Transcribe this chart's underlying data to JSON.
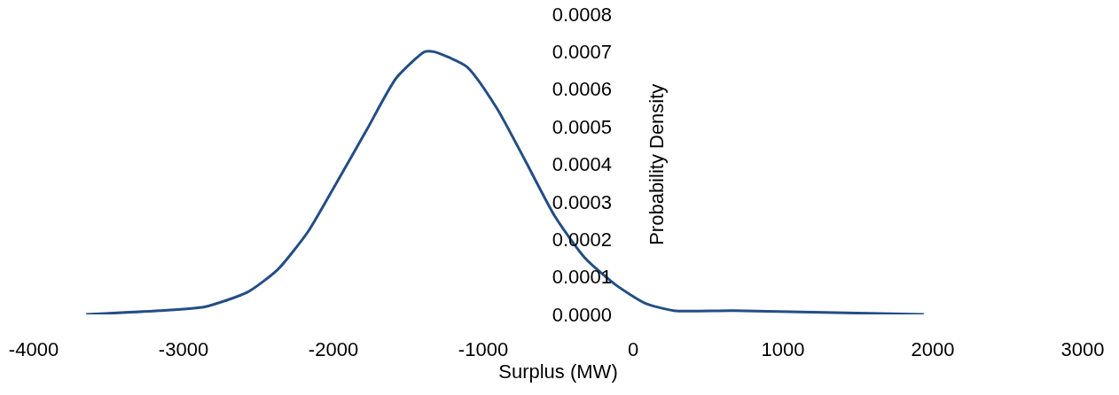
{
  "chart_data": {
    "type": "line",
    "xlabel": "Surplus (MW)",
    "ylabel": "Probability Density",
    "xlim": [
      -4000,
      3000
    ],
    "xticks": [
      -4000,
      -3000,
      -2000,
      -1000,
      0,
      1000,
      2000,
      3000
    ],
    "ylim": [
      0,
      0.0008
    ],
    "yticks": [
      {
        "value": 0,
        "label": "0.0000"
      },
      {
        "value": 0.0001,
        "label": "0.0001"
      },
      {
        "value": 0.0002,
        "label": "0.0002"
      },
      {
        "value": 0.0003,
        "label": "0.0003"
      },
      {
        "value": 0.0004,
        "label": "0.0004"
      },
      {
        "value": 0.0005,
        "label": "0.0005"
      },
      {
        "value": 0.0006,
        "label": "0.0006"
      },
      {
        "value": 0.0007,
        "label": "0.0007"
      },
      {
        "value": 0.0008,
        "label": "0.0008"
      }
    ],
    "grid": false,
    "legend": false,
    "marker": "none",
    "line_style": "solid",
    "series": [
      {
        "color": "#234e86",
        "x": [
          -3650,
          -3160,
          -2860,
          -2570,
          -2370,
          -2170,
          -1980,
          -1780,
          -1580,
          -1390,
          -1330,
          -1110,
          -910,
          -720,
          -520,
          -320,
          -120,
          80,
          270,
          670,
          1940
        ],
        "values": [
          0,
          1e-05,
          2e-05,
          6e-05,
          0.00012,
          0.00022,
          0.00035,
          0.00049,
          0.00063,
          0.0007,
          0.0007,
          0.00066,
          0.00055,
          0.00041,
          0.00026,
          0.00015,
          8e-05,
          3e-05,
          1e-05,
          1e-05,
          0
        ]
      }
    ]
  }
}
